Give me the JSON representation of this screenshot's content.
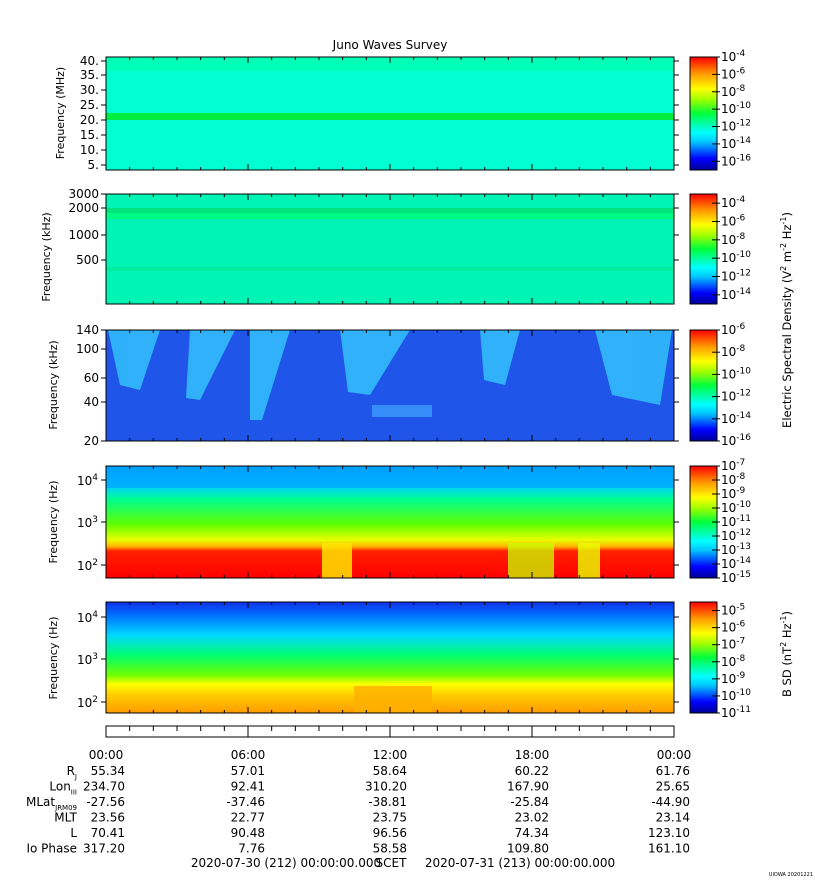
{
  "chart_data": {
    "type": "heatmap",
    "title": "Juno Waves Survey",
    "x_time_range": [
      "2020-07-30T00:00",
      "2020-07-31T00:00"
    ],
    "time_tick_labels": [
      "00:00",
      "06:00",
      "12:00",
      "18:00",
      "00:00"
    ],
    "panels": [
      {
        "ylabel": "Frequency (MHz)",
        "yticks": [
          "40.",
          "35.",
          "30.",
          "25.",
          "20.",
          "15.",
          "10.",
          "5."
        ],
        "colorbar_ticks": [
          {
            "m": "10",
            "e": "-4"
          },
          {
            "m": "10",
            "e": "-6"
          },
          {
            "m": "10",
            "e": "-8"
          },
          {
            "m": "10",
            "e": "-10"
          },
          {
            "m": "10",
            "e": "-12"
          },
          {
            "m": "10",
            "e": "-14"
          },
          {
            "m": "10",
            "e": "-16"
          }
        ],
        "colorbar_range_exp": [
          -17,
          -4
        ]
      },
      {
        "ylabel": "Frequency (kHz)",
        "yticks": [
          "3000",
          "2000",
          "1000",
          "500"
        ],
        "colorbar_ticks": [
          {
            "m": "10",
            "e": "-4"
          },
          {
            "m": "10",
            "e": "-6"
          },
          {
            "m": "10",
            "e": "-8"
          },
          {
            "m": "10",
            "e": "-10"
          },
          {
            "m": "10",
            "e": "-12"
          },
          {
            "m": "10",
            "e": "-14"
          }
        ],
        "colorbar_range_exp": [
          -15,
          -3
        ]
      },
      {
        "ylabel": "Frequency (kHz)",
        "yticks": [
          "140",
          "100",
          "60",
          "40",
          "20"
        ],
        "colorbar_ticks": [
          {
            "m": "10",
            "e": "-6"
          },
          {
            "m": "10",
            "e": "-8"
          },
          {
            "m": "10",
            "e": "-10"
          },
          {
            "m": "10",
            "e": "-12"
          },
          {
            "m": "10",
            "e": "-14"
          },
          {
            "m": "10",
            "e": "-16"
          }
        ],
        "colorbar_range_exp": [
          -16,
          -6
        ]
      },
      {
        "ylabel": "Frequency (Hz)",
        "yticks": [
          {
            "m": "10",
            "e": "4"
          },
          {
            "m": "10",
            "e": "3"
          },
          {
            "m": "10",
            "e": "2"
          }
        ],
        "colorbar_ticks": [
          {
            "m": "10",
            "e": "-7"
          },
          {
            "m": "10",
            "e": "-8"
          },
          {
            "m": "10",
            "e": "-9"
          },
          {
            "m": "10",
            "e": "-10"
          },
          {
            "m": "10",
            "e": "-11"
          },
          {
            "m": "10",
            "e": "-12"
          },
          {
            "m": "10",
            "e": "-13"
          },
          {
            "m": "10",
            "e": "-14"
          },
          {
            "m": "10",
            "e": "-15"
          }
        ],
        "colorbar_range_exp": [
          -15,
          -7
        ]
      },
      {
        "ylabel": "Frequency (Hz)",
        "yticks": [
          {
            "m": "10",
            "e": "4"
          },
          {
            "m": "10",
            "e": "3"
          },
          {
            "m": "10",
            "e": "2"
          }
        ],
        "colorbar_ticks": [
          {
            "m": "10",
            "e": "-5"
          },
          {
            "m": "10",
            "e": "-6"
          },
          {
            "m": "10",
            "e": "-7"
          },
          {
            "m": "10",
            "e": "-8"
          },
          {
            "m": "10",
            "e": "-9"
          },
          {
            "m": "10",
            "e": "-10"
          },
          {
            "m": "10",
            "e": "-11"
          }
        ],
        "colorbar_range_exp": [
          -11,
          -4.5
        ]
      }
    ],
    "efield_colorbar_label": {
      "base": "Electric Spectral Density (V",
      "s1": "2",
      "mid": " m",
      "s2": "-2",
      "mid2": " Hz",
      "s3": "-1",
      "end": ")"
    },
    "bfield_colorbar_label": {
      "base": "B SD (nT",
      "s1": "2",
      "mid": " Hz",
      "s2": "-1",
      "end": ")"
    },
    "ephemeris": {
      "rows": [
        {
          "label": "R",
          "sub": "J",
          "values": [
            "55.34",
            "57.01",
            "58.64",
            "60.22",
            "61.76"
          ]
        },
        {
          "label": "Lon",
          "sub": "III",
          "values": [
            "234.70",
            "92.41",
            "310.20",
            "167.90",
            "25.65"
          ]
        },
        {
          "label": "MLat",
          "sub": "JRM09",
          "values": [
            "-27.56",
            "-37.46",
            "-38.81",
            "-25.84",
            "-44.90"
          ]
        },
        {
          "label": "MLT",
          "sub": "",
          "values": [
            "23.56",
            "22.77",
            "23.75",
            "23.02",
            "23.14"
          ]
        },
        {
          "label": "L",
          "sub": "",
          "values": [
            "70.41",
            "90.48",
            "96.56",
            "74.34",
            "123.10"
          ]
        },
        {
          "label": "Io Phase",
          "sub": "",
          "values": [
            "317.20",
            "7.76",
            "58.58",
            "109.80",
            "161.10"
          ]
        }
      ]
    },
    "footer": {
      "start": "2020-07-30 (212) 00:00:00.000",
      "scet": "SCET",
      "end": "2020-07-31 (213) 00:00:00.000"
    },
    "stamp": "UIOWA 20201221"
  }
}
